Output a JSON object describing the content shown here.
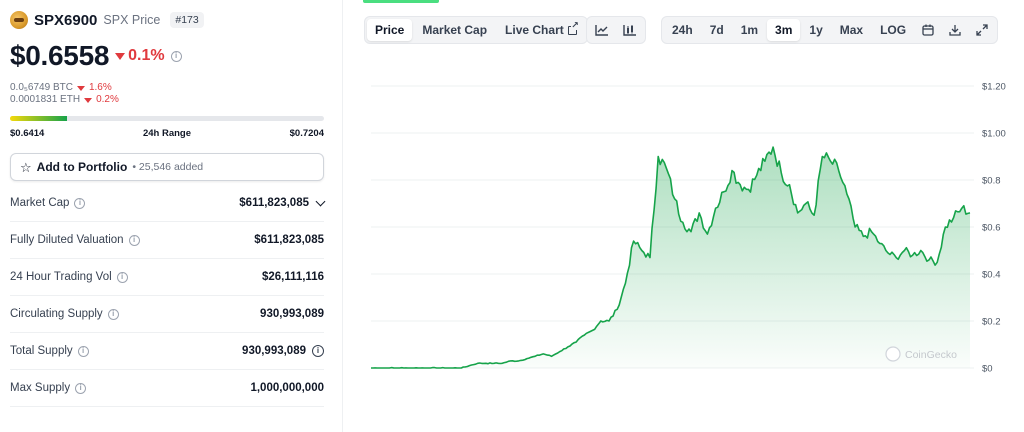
{
  "coin": {
    "symbol": "SPX6900",
    "subtitle": "SPX Price",
    "rank": "#173",
    "price": "$0.6558",
    "change": "0.1%",
    "btc_price": "0.0₅6749 BTC",
    "btc_change": "1.6%",
    "eth_price": "0.0001831 ETH",
    "eth_change": "0.2%",
    "range_low": "$0.6414",
    "range_label": "24h Range",
    "range_high": "$0.7204",
    "range_position": 0.18
  },
  "portfolio": {
    "label": "Add to Portfolio",
    "added": "25,546 added"
  },
  "stats": [
    {
      "label": "Market Cap",
      "value": "$611,823,085"
    },
    {
      "label": "Fully Diluted Valuation",
      "value": "$611,823,085"
    },
    {
      "label": "24 Hour Trading Vol",
      "value": "$26,111,116"
    },
    {
      "label": "Circulating Supply",
      "value": "930,993,089"
    },
    {
      "label": "Total Supply",
      "value": "930,993,089"
    },
    {
      "label": "Max Supply",
      "value": "1,000,000,000"
    }
  ],
  "tabs": {
    "price": "Price",
    "market_cap": "Market Cap",
    "live_chart": "Live Chart"
  },
  "ranges": [
    "24h",
    "7d",
    "1m",
    "3m",
    "1y",
    "Max",
    "LOG"
  ],
  "active_range": "3m",
  "icons": {
    "line_chart": "line-chart-icon",
    "candle_chart": "candlestick-icon",
    "calendar": "calendar-icon",
    "download": "download-icon",
    "expand": "expand-icon"
  },
  "colors": {
    "accent_green": "#16a34a",
    "negative_red": "#e03a3e"
  },
  "watermark": "CoinGecko",
  "chart_data": {
    "type": "area",
    "ylabel": "",
    "y_ticks": [
      "$1.20",
      "$1.00",
      "$0.8",
      "$0.6",
      "$0.4",
      "$0.2",
      "$0"
    ],
    "ylim": [
      0,
      1.2
    ],
    "grid": true,
    "series": [
      {
        "values": [
          0.0,
          0.0,
          0.0,
          0.0,
          0.0,
          0.0,
          0.0,
          0.0,
          0.0,
          0.0,
          0.0,
          0.0,
          0.01,
          0.02,
          0.02,
          0.02,
          0.02,
          0.03,
          0.03,
          0.04,
          0.05,
          0.06,
          0.05,
          0.07,
          0.09,
          0.11,
          0.14,
          0.16,
          0.2,
          0.2,
          0.25,
          0.36,
          0.54,
          0.5,
          0.47,
          0.9,
          0.85,
          0.72,
          0.62,
          0.58,
          0.66,
          0.57,
          0.68,
          0.75,
          0.84,
          0.78,
          0.76,
          0.82,
          0.88,
          0.94,
          0.83,
          0.78,
          0.66,
          0.7,
          0.65,
          0.9,
          0.88,
          0.84,
          0.74,
          0.6,
          0.56,
          0.58,
          0.53,
          0.49,
          0.47,
          0.5,
          0.48,
          0.5,
          0.46,
          0.45,
          0.6,
          0.64,
          0.68,
          0.66
        ]
      }
    ]
  }
}
